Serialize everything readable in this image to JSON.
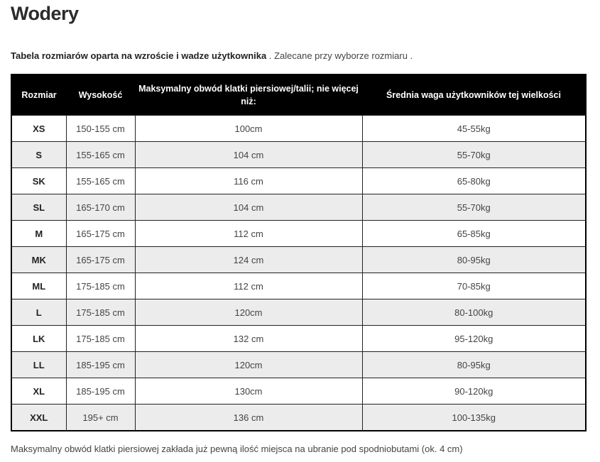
{
  "title": "Wodery",
  "intro": {
    "bold": "Tabela rozmiarów oparta na wzroście i wadze użytkownika",
    "rest": " . Zalecane przy wyborze rozmiaru ."
  },
  "table": {
    "headers": [
      "Rozmiar",
      "Wysokość",
      "Maksymalny obwód klatki piersiowej/talii; nie więcej niż:",
      "Średnia waga użytkowników tej wielkości"
    ],
    "rows": [
      [
        "XS",
        "150-155 cm",
        "100cm",
        "45-55kg"
      ],
      [
        "S",
        "155-165 cm",
        "104 cm",
        "55-70kg"
      ],
      [
        "SK",
        "155-165 cm",
        "116 cm",
        "65-80kg"
      ],
      [
        "SL",
        "165-170 cm",
        "104 cm",
        "55-70kg"
      ],
      [
        "M",
        "165-175 cm",
        "112 cm",
        "65-85kg"
      ],
      [
        "MK",
        "165-175 cm",
        "124 cm",
        "80-95kg"
      ],
      [
        "ML",
        "175-185 cm",
        "112 cm",
        "70-85kg"
      ],
      [
        "L",
        "175-185 cm",
        "120cm",
        "80-100kg"
      ],
      [
        "LK",
        "175-185 cm",
        "132 cm",
        "95-120kg"
      ],
      [
        "LL",
        "185-195 cm",
        "120cm",
        "80-95kg"
      ],
      [
        "XL",
        "185-195 cm",
        "130cm",
        "90-120kg"
      ],
      [
        "XXL",
        "195+ cm",
        "136 cm",
        "100-135kg"
      ]
    ]
  },
  "note": "Maksymalny obwód klatki piersiowej zakłada już pewną ilość miejsca na ubranie pod spodniobutami (ok. 4 cm)"
}
